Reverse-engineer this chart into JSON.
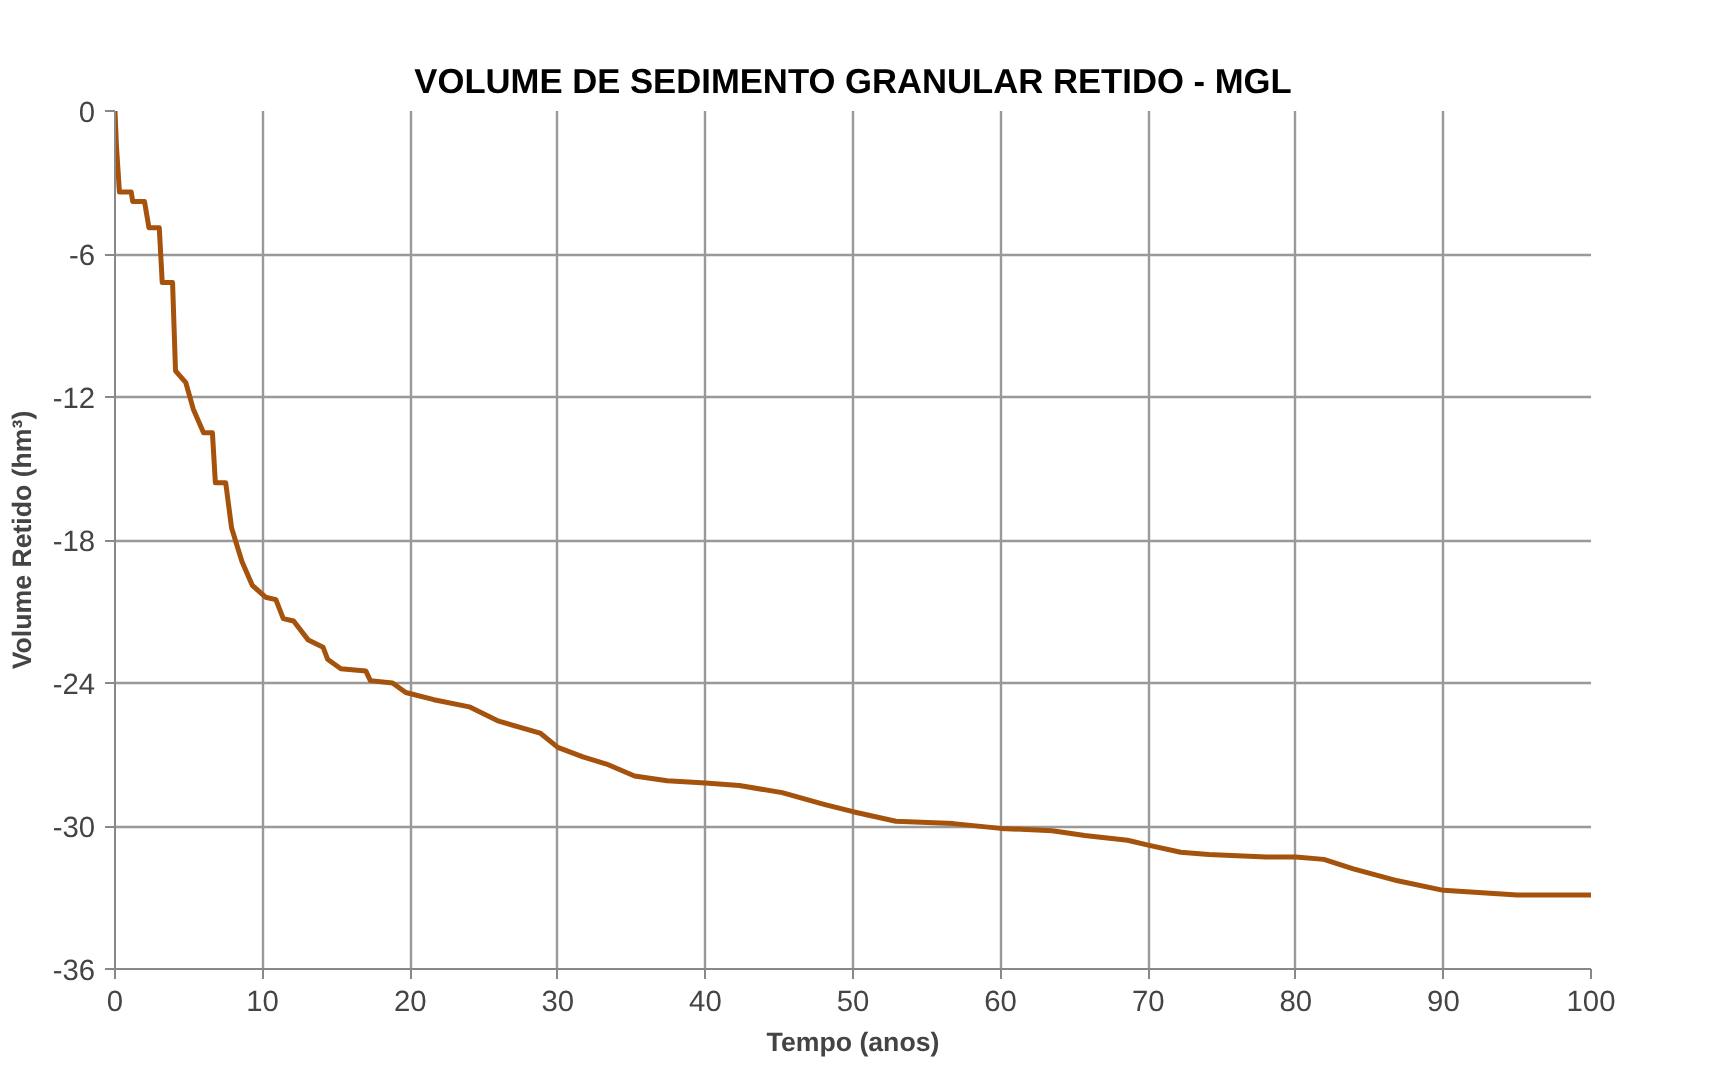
{
  "chart_data": {
    "type": "line",
    "title": "VOLUME DE SEDIMENTO GRANULAR RETIDO - MGL",
    "xlabel": "Tempo (anos)",
    "ylabel": "Volume Retido (hm³)",
    "x": [
      0,
      0.1,
      0.3,
      1.1,
      1.2,
      2.0,
      2.3,
      3.0,
      3.2,
      3.9,
      4.1,
      4.8,
      5.3,
      6.0,
      6.6,
      6.8,
      7.5,
      7.9,
      8.6,
      9.3,
      10.2,
      10.9,
      11.4,
      12.1,
      13.1,
      14.1,
      14.4,
      15.3,
      17.0,
      17.3,
      18.8,
      19.7,
      21.6,
      24.0,
      26.0,
      28.8,
      30.0,
      31.7,
      33.3,
      35.2,
      37.4,
      40.0,
      42.3,
      45.2,
      48.1,
      50.0,
      52.9,
      56.8,
      60.0,
      63.5,
      65.7,
      68.6,
      70.0,
      72.2,
      74.1,
      78.0,
      80.0,
      81.9,
      83.9,
      86.9,
      90.0,
      95.0,
      100.0
    ],
    "series": [
      {
        "color": "#a5520c",
        "values": [
          0,
          -1.5,
          -3.4,
          -3.4,
          -3.8,
          -3.8,
          -4.9,
          -4.9,
          -7.2,
          -7.2,
          -10.9,
          -11.4,
          -12.5,
          -13.5,
          -13.5,
          -15.6,
          -15.6,
          -17.5,
          -18.9,
          -19.9,
          -20.4,
          -20.5,
          -21.3,
          -21.4,
          -22.2,
          -22.5,
          -23.0,
          -23.4,
          -23.5,
          -23.9,
          -24.0,
          -24.4,
          -24.7,
          -25.0,
          -25.6,
          -26.1,
          -26.7,
          -27.1,
          -27.4,
          -27.9,
          -28.1,
          -28.2,
          -28.3,
          -28.6,
          -29.1,
          -29.4,
          -29.8,
          -29.9,
          -30.1,
          -30.2,
          -30.4,
          -30.6,
          -30.8,
          -31.1,
          -31.2,
          -31.3,
          -31.3,
          -31.4,
          -31.8,
          -32.3,
          -32.7,
          -32.9,
          -32.9
        ]
      }
    ],
    "xlim": [
      0,
      100
    ],
    "xticks": [
      0,
      10,
      20,
      30,
      40,
      50,
      60,
      70,
      80,
      90,
      100
    ],
    "ylim": [
      -36,
      0
    ],
    "yticks": [
      -36,
      -30,
      -24,
      -18,
      -12,
      -6,
      0
    ],
    "grid": true,
    "marker": "none",
    "line_style": "solid"
  }
}
